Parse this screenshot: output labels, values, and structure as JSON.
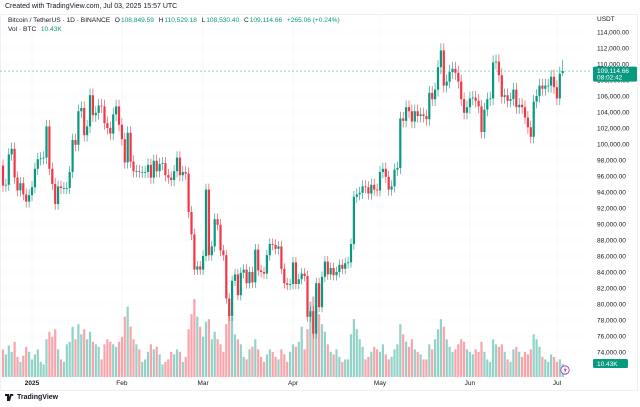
{
  "header": {
    "created": "Created with TradingView.com, Jul 03, 2025 15:57 UTC"
  },
  "legend": {
    "symbol": "Bitcoin / TetherUS · 1D · BINANCE",
    "o_label": "O",
    "o": "108,849.59",
    "h_label": "H",
    "h": "110,529.18",
    "l_label": "L",
    "l": "108,530.40",
    "c_label": "C",
    "c": "109,114.66",
    "change": "+265.06 (+0.24%)",
    "vol_label": "Vol · BTC",
    "vol": "10.43K"
  },
  "axis": {
    "unit": "USDT"
  },
  "price_label": {
    "price": "109,114.66",
    "countdown": "08:02:42"
  },
  "volume_label": "10.43K",
  "footer": {
    "brand": "TradingView"
  },
  "colors": {
    "up": "#089981",
    "down": "#F23645",
    "up_volume": "#92d2c8",
    "down_volume": "#f9a3aa",
    "grid": "#f2f3f5"
  },
  "chart_data": {
    "type": "candlestick",
    "title": "Bitcoin / TetherUS · 1D · BINANCE",
    "start_date": "2024-12-22",
    "end_date": "2025-07-03",
    "ylim": [
      72000,
      116000
    ],
    "y_ticks": [
      74000,
      76000,
      78000,
      80000,
      82000,
      84000,
      86000,
      88000,
      90000,
      92000,
      94000,
      96000,
      98000,
      100000,
      102000,
      104000,
      106000,
      108000,
      110000,
      112000,
      114000
    ],
    "y_tick_labels": [
      "74,000.00",
      "76,000.00",
      "78,000.00",
      "80,000.00",
      "82,000.00",
      "84,000.00",
      "86,000.00",
      "88,000.00",
      "90,000.00",
      "92,000.00",
      "94,000.00",
      "96,000.00",
      "98,000.00",
      "100,000.00",
      "102,000.00",
      "104,000.00",
      "106,000.00",
      "108,000.00",
      "110,000.00",
      "112,000.00",
      "114,000.00"
    ],
    "x_ticks": [
      {
        "date": "2025-01-01",
        "label": "2025"
      },
      {
        "date": "2025-02-01",
        "label": "Feb"
      },
      {
        "date": "2025-03-01",
        "label": "Mar"
      },
      {
        "date": "2025-04-01",
        "label": "Apr"
      },
      {
        "date": "2025-05-01",
        "label": "May"
      },
      {
        "date": "2025-06-01",
        "label": "Jun"
      },
      {
        "date": "2025-07-01",
        "label": "Jul"
      }
    ],
    "first_open": 97300,
    "last_candle": {
      "open": 108849.59,
      "high": 110529.18,
      "low": 108530.4,
      "close": 109114.66
    },
    "close": [
      94800,
      94900,
      98700,
      99400,
      95800,
      94200,
      95100,
      93700,
      92800,
      93600,
      94600,
      96900,
      98100,
      98200,
      98300,
      102200,
      96900,
      95000,
      92500,
      94700,
      94500,
      94500,
      94500,
      96500,
      100500,
      99900,
      104100,
      104500,
      101100,
      102200,
      106100,
      103600,
      103900,
      104800,
      104700,
      102600,
      102000,
      101300,
      103700,
      104700,
      102400,
      100600,
      97700,
      101400,
      97800,
      96600,
      96600,
      96500,
      96500,
      96500,
      97400,
      95800,
      97900,
      96600,
      97500,
      97600,
      96100,
      95800,
      95500,
      96600,
      98300,
      96100,
      96500,
      96300,
      91500,
      88700,
      84300,
      84700,
      84300,
      86000,
      94300,
      86100,
      87200,
      90600,
      89900,
      86700,
      86100,
      80700,
      78500,
      82900,
      83700,
      81100,
      83900,
      84300,
      82600,
      84000,
      82700,
      86800,
      84200,
      84000,
      83800,
      86100,
      87500,
      87400,
      86900,
      87200,
      84400,
      82600,
      82400,
      82500,
      85200,
      82500,
      83100,
      83800,
      83500,
      78400,
      79100,
      76300,
      82600,
      79600,
      83400,
      85300,
      83700,
      84500,
      83600,
      84000,
      84900,
      84400,
      85100,
      85200,
      87500,
      93400,
      93700,
      93900,
      94700,
      94600,
      93800,
      94900,
      94300,
      94200,
      96500,
      96900,
      95900,
      94300,
      94700,
      96800,
      97000,
      103200,
      102900,
      104600,
      104100,
      102800,
      104100,
      103500,
      103700,
      103500,
      103100,
      106400,
      105600,
      106800,
      109600,
      111700,
      107300,
      107800,
      109000,
      109400,
      108900,
      107800,
      105600,
      103900,
      104600,
      105700,
      105800,
      105400,
      104700,
      101500,
      104300,
      105600,
      105700,
      110200,
      110300,
      108600,
      105900,
      106100,
      105400,
      105600,
      106800,
      104600,
      104900,
      104600,
      103300,
      102100,
      100900,
      105300,
      106000,
      107300,
      106900,
      107300,
      107300,
      108400,
      107100,
      105700,
      108800,
      109114.66
    ],
    "volume_k": [
      22,
      18,
      25,
      20,
      28,
      16,
      12,
      17,
      24,
      20,
      14,
      18,
      22,
      12,
      10,
      30,
      36,
      32,
      38,
      22,
      14,
      12,
      26,
      28,
      40,
      30,
      42,
      34,
      38,
      30,
      36,
      28,
      26,
      24,
      14,
      26,
      30,
      28,
      26,
      24,
      28,
      32,
      48,
      56,
      40,
      30,
      26,
      22,
      12,
      14,
      20,
      26,
      22,
      24,
      18,
      10,
      12,
      14,
      20,
      18,
      22,
      20,
      12,
      16,
      38,
      50,
      62,
      48,
      40,
      32,
      44,
      46,
      30,
      36,
      30,
      26,
      20,
      42,
      54,
      48,
      34,
      30,
      26,
      16,
      14,
      22,
      24,
      30,
      22,
      16,
      12,
      18,
      22,
      20,
      16,
      14,
      22,
      18,
      12,
      20,
      26,
      24,
      28,
      40,
      22,
      38,
      60,
      64,
      70,
      50,
      42,
      36,
      26,
      20,
      18,
      22,
      16,
      12,
      14,
      14,
      34,
      46,
      38,
      30,
      24,
      14,
      16,
      20,
      24,
      22,
      20,
      26,
      18,
      14,
      16,
      22,
      26,
      42,
      34,
      28,
      24,
      30,
      22,
      20,
      18,
      14,
      14,
      26,
      22,
      30,
      38,
      46,
      40,
      30,
      24,
      20,
      22,
      26,
      30,
      28,
      22,
      20,
      18,
      22,
      20,
      28,
      20,
      14,
      12,
      30,
      26,
      24,
      26,
      20,
      14,
      12,
      22,
      24,
      20,
      16,
      20,
      18,
      22,
      34,
      30,
      24,
      16,
      14,
      12,
      18,
      16,
      12,
      14,
      10.43
    ]
  }
}
